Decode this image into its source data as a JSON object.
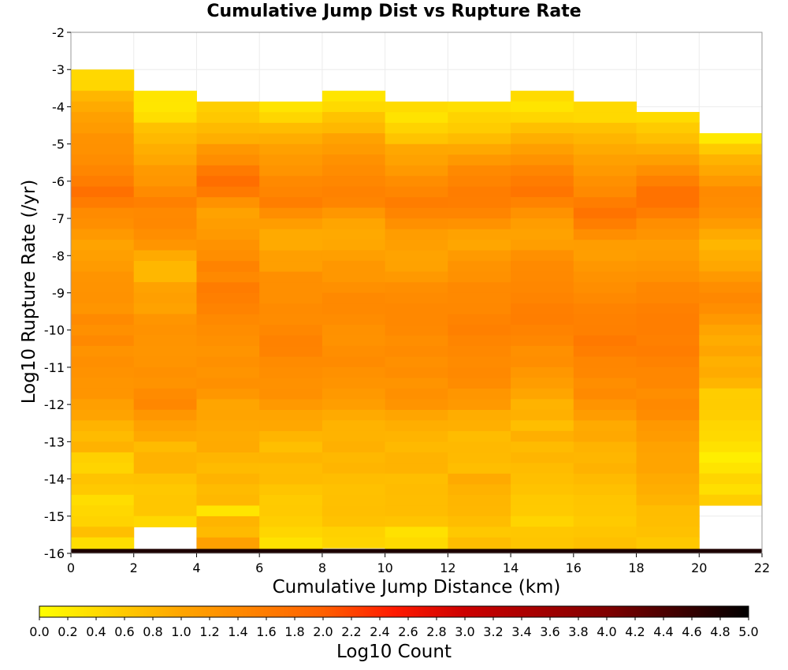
{
  "chart_data": {
    "type": "heatmap",
    "title": "Cumulative Jump Dist vs Rupture Rate",
    "xlabel": "Cumulative Jump Distance (km)",
    "ylabel": "Log10 Rupture Rate (/yr)",
    "xlim": [
      0,
      22
    ],
    "ylim": [
      -16,
      -2
    ],
    "x_ticks": [
      0,
      2,
      4,
      6,
      8,
      10,
      12,
      14,
      16,
      18,
      20,
      22
    ],
    "y_ticks": [
      -2,
      -3,
      -4,
      -5,
      -6,
      -7,
      -8,
      -9,
      -10,
      -11,
      -12,
      -13,
      -14,
      -15,
      -16
    ],
    "x_bin_width": 2,
    "y_bin_height": 0.2857,
    "x_bins": [
      1,
      3,
      5,
      7,
      9,
      11,
      13,
      15,
      17,
      19,
      21
    ],
    "grid": true,
    "colorbar": {
      "label": "Log10 Count",
      "range": [
        0.0,
        5.0
      ],
      "ticks": [
        "0.0",
        "0.2",
        "0.4",
        "0.6",
        "0.8",
        "1.0",
        "1.2",
        "1.4",
        "1.6",
        "1.8",
        "2.0",
        "2.2",
        "2.4",
        "2.6",
        "2.8",
        "3.0",
        "3.2",
        "3.4",
        "3.6",
        "3.8",
        "4.0",
        "4.2",
        "4.4",
        "4.6",
        "4.8",
        "5.0"
      ],
      "colors": [
        "#ffff00",
        "#ffa500",
        "#ff6000",
        "#ff1a00",
        "#cc0000",
        "#800000",
        "#000000"
      ],
      "color_stops": [
        0,
        0.2,
        0.4,
        0.5,
        0.6,
        0.8,
        1
      ]
    },
    "columns": [
      {
        "x_center": 1,
        "rows": [
          0.43,
          0.46,
          0.81,
          0.94,
          1.07,
          1.15,
          1.27,
          1.29,
          1.35,
          1.45,
          1.58,
          1.77,
          1.6,
          1.38,
          1.32,
          1.18,
          1.03,
          1.08,
          1.15,
          1.25,
          1.26,
          1.28,
          1.23,
          1.39,
          1.3,
          1.4,
          1.26,
          1.32,
          1.27,
          1.23,
          1.23,
          1.09,
          1.03,
          0.85,
          0.76,
          0.86,
          0.52,
          0.48,
          0.67,
          0.6,
          0.38,
          0.45,
          0.49,
          0.71,
          0.37,
          0.33,
          0.32,
          0.34
        ]
      },
      {
        "x_center": 3,
        "rows": [
          0.29,
          0.28,
          0.37,
          0.69,
          0.78,
          0.9,
          0.98,
          1.18,
          1.22,
          1.37,
          1.54,
          1.4,
          1.42,
          1.34,
          1.23,
          0.94,
          0.8,
          0.8,
          1.05,
          1.09,
          1.05,
          1.23,
          1.28,
          1.25,
          1.23,
          1.25,
          1.3,
          1.26,
          1.38,
          1.44,
          1.22,
          1.06,
          0.97,
          0.76,
          0.86,
          0.86,
          0.69,
          0.61,
          0.63,
          0.63,
          0.43,
          0.45,
          0.42,
          0.42,
          0.48,
          0.52
        ]
      },
      {
        "x_center": 5,
        "rows": [
          0.55,
          0.61,
          0.77,
          0.89,
          1.2,
          1.34,
          1.63,
          1.79,
          1.62,
          1.27,
          1.05,
          1.12,
          1.17,
          1.27,
          1.33,
          1.5,
          1.4,
          1.6,
          1.55,
          1.49,
          1.41,
          1.35,
          1.31,
          1.24,
          1.3,
          1.24,
          1.3,
          1.2,
          1.0,
          1.01,
          0.98,
          0.93,
          0.95,
          0.82,
          0.76,
          0.84,
          0.76,
          0.79,
          0.29,
          0.83,
          0.77,
          1.07,
          1.05
        ]
      },
      {
        "x_center": 7,
        "rows": [
          0.3,
          0.46,
          0.74,
          0.91,
          1.07,
          1.17,
          1.25,
          1.4,
          1.46,
          1.56,
          1.33,
          1.12,
          0.95,
          0.94,
          1.08,
          1.08,
          1.32,
          1.32,
          1.32,
          1.37,
          1.36,
          1.43,
          1.51,
          1.5,
          1.37,
          1.34,
          1.29,
          1.3,
          1.17,
          1.0,
          0.98,
          0.82,
          0.71,
          0.82,
          0.75,
          0.76,
          0.64,
          0.58,
          0.59,
          0.55,
          0.46,
          0.32,
          0.43
        ]
      },
      {
        "x_center": 9,
        "rows": [
          0.29,
          0.42,
          0.67,
          0.79,
          1.05,
          1.15,
          1.29,
          1.36,
          1.43,
          1.51,
          1.46,
          1.2,
          1.0,
          0.96,
          0.98,
          1.08,
          1.2,
          1.21,
          1.31,
          1.41,
          1.41,
          1.36,
          1.29,
          1.27,
          1.33,
          1.37,
          1.29,
          1.24,
          1.17,
          1.1,
          0.95,
          0.84,
          0.85,
          0.88,
          0.79,
          0.82,
          0.73,
          0.69,
          0.7,
          0.71,
          0.68,
          0.51,
          0.48
        ]
      },
      {
        "x_center": 11,
        "rows": [
          0.4,
          0.31,
          0.49,
          0.66,
          0.98,
          1.04,
          1.18,
          1.35,
          1.45,
          1.58,
          1.47,
          1.3,
          1.12,
          1.09,
          1.03,
          1.05,
          1.18,
          1.33,
          1.38,
          1.42,
          1.42,
          1.41,
          1.34,
          1.37,
          1.31,
          1.35,
          1.25,
          1.3,
          1.24,
          1.0,
          0.9,
          0.83,
          0.78,
          0.84,
          0.84,
          0.72,
          0.75,
          0.73,
          0.73,
          0.66,
          0.33,
          0.41,
          0.32
        ]
      },
      {
        "x_center": 13,
        "rows": [
          0.36,
          0.49,
          0.57,
          0.75,
          0.97,
          1.19,
          1.41,
          1.48,
          1.58,
          1.57,
          1.47,
          1.27,
          1.05,
          0.99,
          1.16,
          1.26,
          1.29,
          1.4,
          1.4,
          1.42,
          1.49,
          1.53,
          1.46,
          1.42,
          1.37,
          1.41,
          1.36,
          1.22,
          1.17,
          0.91,
          0.89,
          0.74,
          0.78,
          0.77,
          0.72,
          0.95,
          0.86,
          0.81,
          0.8,
          0.73,
          0.61,
          0.73,
          0.66
        ]
      },
      {
        "x_center": 15,
        "rows": [
          0.4,
          0.3,
          0.46,
          0.7,
          0.89,
          1.09,
          1.26,
          1.47,
          1.59,
          1.69,
          1.49,
          1.27,
          1.12,
          1.04,
          1.1,
          1.3,
          1.39,
          1.4,
          1.44,
          1.48,
          1.55,
          1.57,
          1.5,
          1.43,
          1.31,
          1.33,
          1.21,
          1.11,
          1.0,
          0.85,
          0.88,
          0.72,
          0.89,
          0.76,
          0.82,
          0.74,
          0.71,
          0.67,
          0.6,
          0.59,
          0.48,
          0.62,
          0.64,
          0.62,
          0.57
        ]
      },
      {
        "x_center": 17,
        "rows": [
          0.42,
          0.42,
          0.69,
          0.82,
          0.94,
          1.07,
          1.17,
          1.31,
          1.39,
          1.58,
          1.73,
          1.56,
          1.34,
          1.12,
          1.1,
          1.21,
          1.28,
          1.34,
          1.4,
          1.5,
          1.52,
          1.53,
          1.64,
          1.57,
          1.45,
          1.43,
          1.34,
          1.39,
          1.25,
          1.13,
          0.94,
          0.97,
          0.85,
          0.81,
          0.86,
          0.77,
          0.7,
          0.64,
          0.63,
          0.59,
          0.65,
          0.7,
          0.84,
          0.83
        ]
      },
      {
        "x_center": 19,
        "rows": [
          0.4,
          0.58,
          0.71,
          0.9,
          1.08,
          1.32,
          1.54,
          1.74,
          1.74,
          1.56,
          1.33,
          1.24,
          1.12,
          1.14,
          1.23,
          1.29,
          1.43,
          1.45,
          1.54,
          1.56,
          1.56,
          1.54,
          1.58,
          1.51,
          1.43,
          1.43,
          1.34,
          1.41,
          1.36,
          1.19,
          1.14,
          1.05,
          1.02,
          1.01,
          0.94,
          0.9,
          0.84,
          0.73,
          0.72,
          0.69,
          0.61,
          0.59,
          0.64
        ]
      },
      {
        "x_center": 21,
        "rows": [
          0.24,
          0.59,
          0.84,
          0.98,
          1.18,
          1.39,
          1.36,
          1.29,
          1.15,
          0.94,
          0.81,
          0.91,
          0.98,
          1.18,
          1.34,
          1.42,
          1.34,
          1.19,
          1.01,
          0.92,
          1.0,
          0.88,
          0.93,
          0.82,
          0.56,
          0.57,
          0.54,
          0.46,
          0.42,
          0.33,
          0.19,
          0.3,
          0.47,
          0.36,
          0.54
        ]
      }
    ],
    "bottom_row": {
      "y_range": [
        -16,
        -15.88
      ],
      "value": 4.78,
      "x_range": [
        0,
        22
      ]
    },
    "notes_columns_rows_order": "rows listed top to bottom starting at each column's upper edge"
  },
  "column_tops": [
    -3.0,
    -3.57,
    -3.86,
    -3.86,
    -3.57,
    -3.86,
    -3.86,
    -3.57,
    -3.86,
    -4.14,
    -4.71
  ],
  "column_gaps": [
    {
      "x_center": 15,
      "y_range": [
        -4.14,
        -3.86
      ]
    }
  ],
  "column_bottoms": [
    -15.88,
    -15.29,
    -15.88,
    -15.88,
    -15.88,
    -15.88,
    -15.88,
    -15.88,
    -15.88,
    -15.88,
    -15.29
  ]
}
